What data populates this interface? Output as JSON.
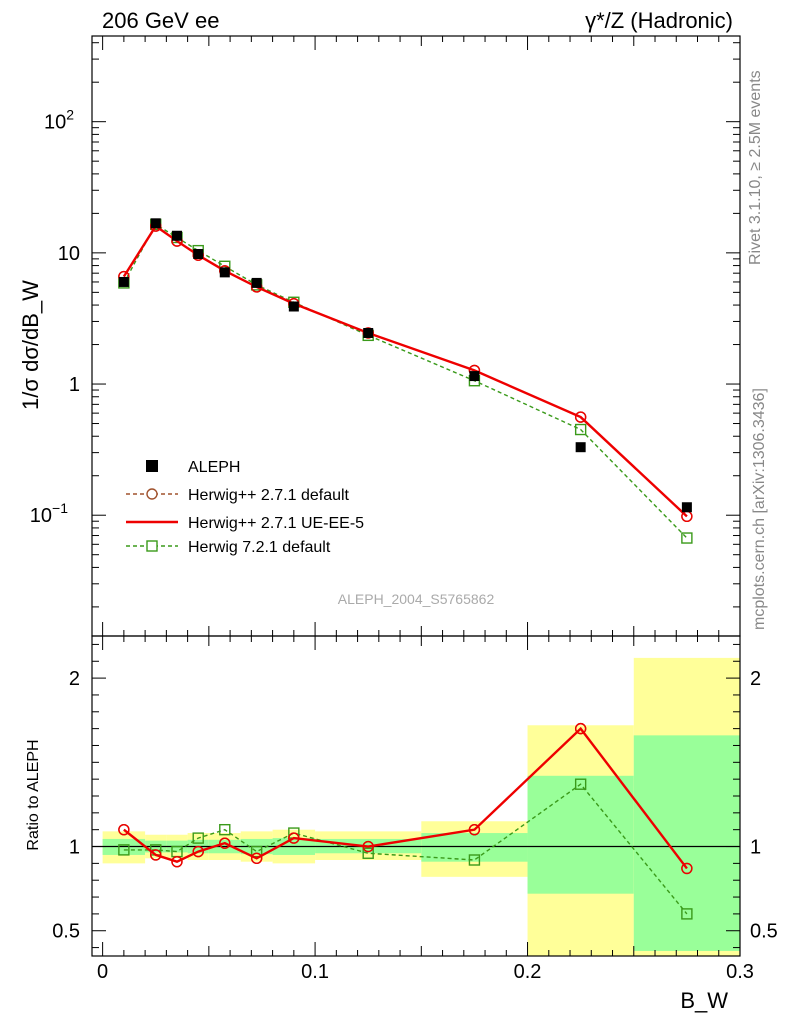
{
  "header": {
    "left": "206 GeV ee",
    "right_main": "γ*/Z (Hadronic)"
  },
  "side_labels": {
    "rivet": "Rivet 3.1.10, ≥ 2.5M events",
    "mcplots": "mcplots.cern.ch [arXiv:1306.3436]"
  },
  "watermark": "ALEPH_2004_S5765862",
  "colors": {
    "data": "#000000",
    "herwig_default": "#a0522d",
    "herwig_ueee5": "#ee0000",
    "herwig7": "#3a9a1a",
    "band_yellow": "#ffff99",
    "band_green": "#99ff99"
  },
  "chart_data": [
    {
      "panel": "main",
      "type": "scatter",
      "ylabel": "1/σ  dσ/dB_W",
      "yscale": "log",
      "ylim": [
        0.012,
        450
      ],
      "xlim": [
        -0.005,
        0.3
      ],
      "ytick_labels": [
        "10^-1",
        "1",
        "10",
        "10^2"
      ],
      "legend": {
        "placement": "lower-left",
        "entries": [
          "ALEPH",
          "Herwig++ 2.7.1 default",
          "Herwig++ 2.7.1 UE-EE-5",
          "Herwig 7.2.1 default"
        ]
      },
      "bins": [
        [
          0.0,
          0.02
        ],
        [
          0.02,
          0.03
        ],
        [
          0.03,
          0.04
        ],
        [
          0.04,
          0.05
        ],
        [
          0.05,
          0.065
        ],
        [
          0.065,
          0.08
        ],
        [
          0.08,
          0.1
        ],
        [
          0.1,
          0.15
        ],
        [
          0.15,
          0.2
        ],
        [
          0.2,
          0.25
        ],
        [
          0.25,
          0.3
        ]
      ],
      "x": [
        0.01,
        0.025,
        0.035,
        0.045,
        0.0575,
        0.0725,
        0.09,
        0.125,
        0.175,
        0.225,
        0.275
      ],
      "series": [
        {
          "name": "ALEPH",
          "values": [
            6.0,
            16.8,
            13.5,
            9.8,
            7.1,
            5.9,
            3.9,
            2.45,
            1.15,
            0.33,
            0.115
          ]
        },
        {
          "name": "Herwig++ 2.7.1 default",
          "values": [
            6.6,
            16.0,
            12.3,
            9.6,
            7.3,
            5.5,
            4.1,
            2.45,
            1.27,
            0.56,
            0.098
          ]
        },
        {
          "name": "Herwig++ 2.7.1 UE-EE-5",
          "values": [
            6.6,
            16.0,
            12.3,
            9.6,
            7.3,
            5.5,
            4.1,
            2.45,
            1.27,
            0.56,
            0.098
          ]
        },
        {
          "name": "Herwig 7.2.1 default",
          "values": [
            5.9,
            16.5,
            13.1,
            10.4,
            7.9,
            5.7,
            4.2,
            2.35,
            1.06,
            0.45,
            0.067
          ]
        }
      ]
    },
    {
      "panel": "ratio",
      "type": "line",
      "ylabel": "Ratio to ALEPH",
      "xlabel": "B_W",
      "ylim": [
        0.35,
        2.25
      ],
      "xlim": [
        -0.005,
        0.3
      ],
      "ytick_labels": [
        "0.5",
        "1",
        "2"
      ],
      "xtick_labels": [
        "0",
        "0.1",
        "0.2",
        "0.3"
      ],
      "reference_line": 1.0,
      "bands": {
        "bins": [
          [
            0.0,
            0.02
          ],
          [
            0.02,
            0.03
          ],
          [
            0.03,
            0.04
          ],
          [
            0.04,
            0.05
          ],
          [
            0.05,
            0.065
          ],
          [
            0.065,
            0.08
          ],
          [
            0.08,
            0.1
          ],
          [
            0.1,
            0.15
          ],
          [
            0.15,
            0.2
          ],
          [
            0.2,
            0.25
          ],
          [
            0.25,
            0.3
          ]
        ],
        "yellow_low": [
          0.9,
          0.93,
          0.93,
          0.92,
          0.92,
          0.91,
          0.9,
          0.92,
          0.82,
          0.0,
          0.0
        ],
        "yellow_high": [
          1.09,
          1.07,
          1.07,
          1.08,
          1.08,
          1.09,
          1.1,
          1.09,
          1.15,
          1.72,
          2.12
        ],
        "green_low": [
          0.95,
          0.965,
          0.965,
          0.96,
          0.96,
          0.955,
          0.95,
          0.96,
          0.91,
          0.72,
          0.38
        ],
        "green_high": [
          1.045,
          1.035,
          1.035,
          1.04,
          1.04,
          1.045,
          1.05,
          1.045,
          1.08,
          1.42,
          1.66
        ]
      },
      "x": [
        0.01,
        0.025,
        0.035,
        0.045,
        0.0575,
        0.0725,
        0.09,
        0.125,
        0.175,
        0.225,
        0.275
      ],
      "series": [
        {
          "name": "Herwig++ 2.7.1 default",
          "values": [
            1.1,
            0.95,
            0.91,
            0.97,
            1.02,
            0.93,
            1.05,
            1.0,
            1.1,
            1.7,
            0.87
          ]
        },
        {
          "name": "Herwig++ 2.7.1 UE-EE-5",
          "values": [
            1.1,
            0.95,
            0.91,
            0.97,
            1.02,
            0.93,
            1.05,
            1.0,
            1.1,
            1.7,
            0.87
          ]
        },
        {
          "name": "Herwig 7.2.1 default",
          "values": [
            0.98,
            0.98,
            0.97,
            1.05,
            1.1,
            0.97,
            1.08,
            0.96,
            0.92,
            1.37,
            0.6
          ]
        }
      ]
    }
  ]
}
